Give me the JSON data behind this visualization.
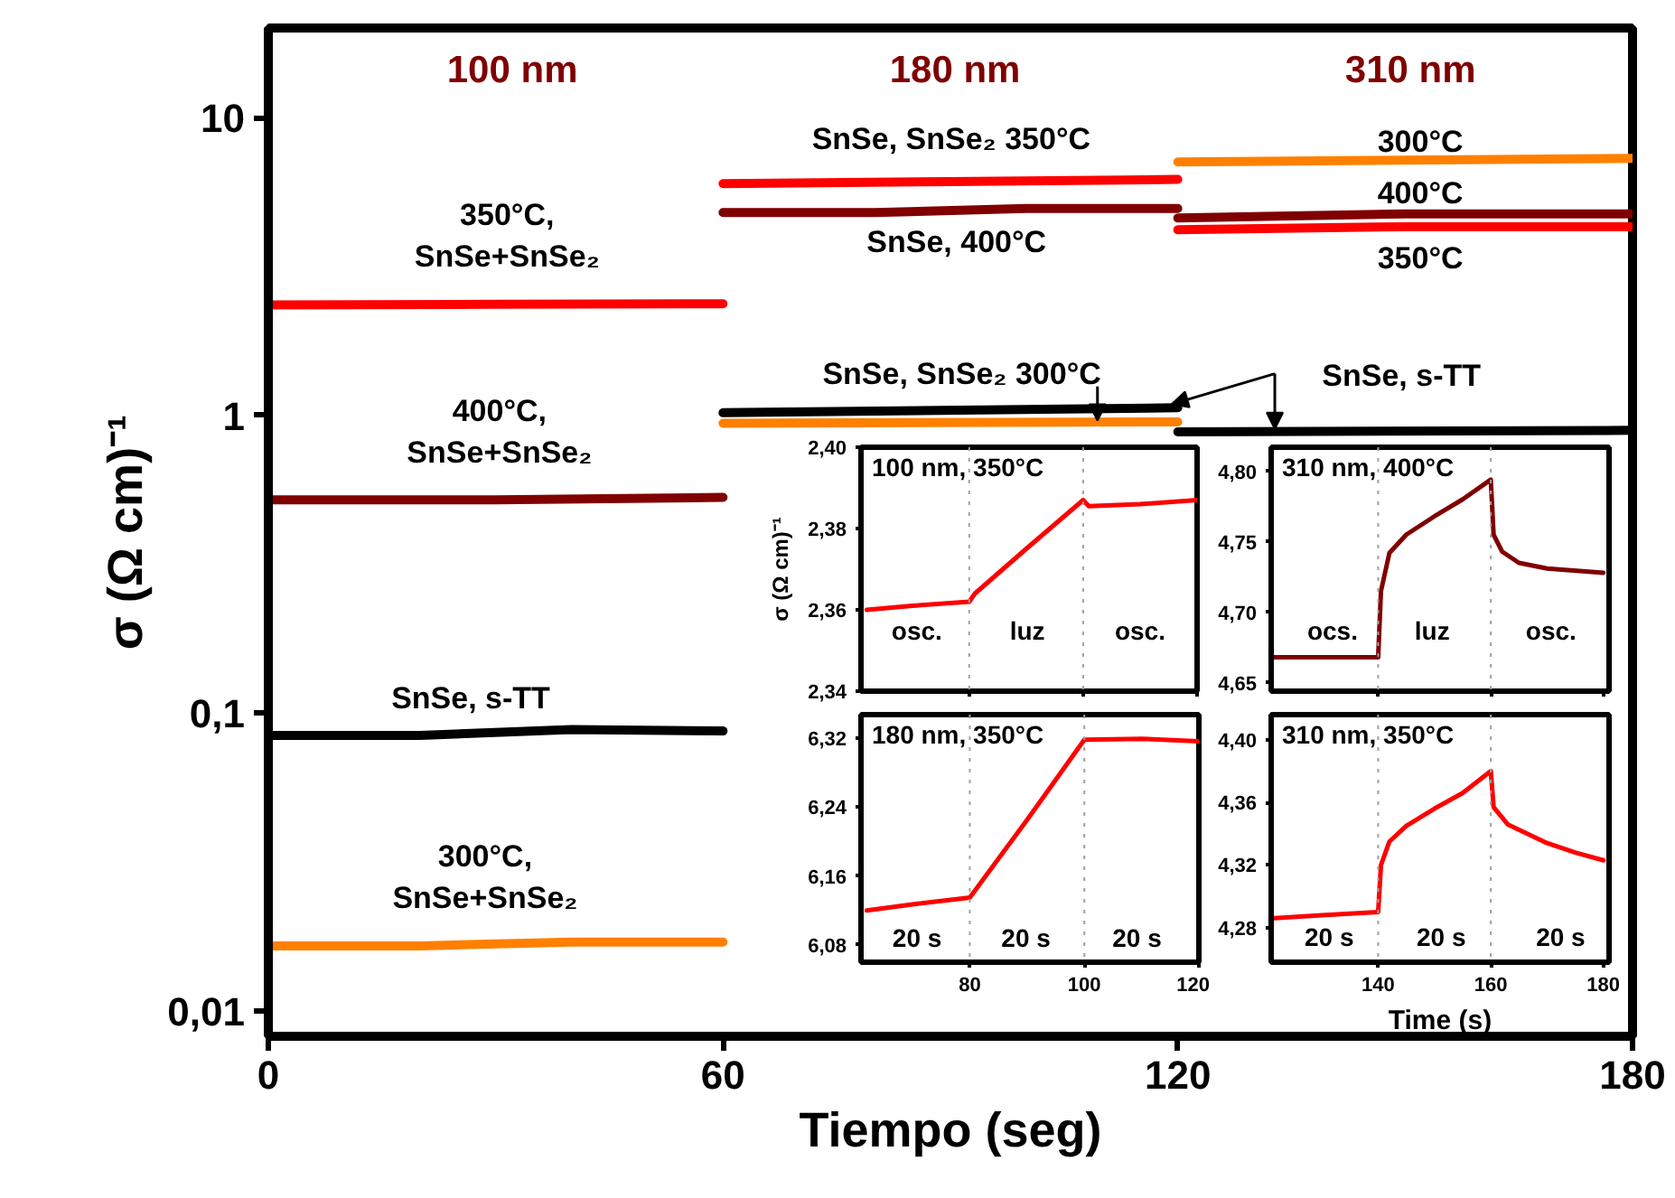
{
  "chart_data": [
    {
      "type": "line",
      "xlabel": "Tiempo (seg)",
      "ylabel": "σ (Ω cm)⁻¹",
      "log": true,
      "grid": false,
      "xlim": [
        0,
        180
      ],
      "xticks": [
        0,
        60,
        120,
        180
      ],
      "ylim": [
        0.0082,
        20
      ],
      "yticks": [
        {
          "value": 0.01,
          "label": "0,01"
        },
        {
          "value": 0.1,
          "label": "0,1"
        },
        1,
        10
      ],
      "series": [
        {
          "color": "#ff0000",
          "x": [
            0,
            30,
            60
          ],
          "values": [
            2.35,
            2.36,
            2.37
          ]
        },
        {
          "color": "#800000",
          "x": [
            0,
            30,
            60
          ],
          "values": [
            0.52,
            0.52,
            0.53
          ]
        },
        {
          "color": "#000000",
          "x": [
            0,
            20,
            40,
            60
          ],
          "values": [
            0.084,
            0.084,
            0.088,
            0.087
          ]
        },
        {
          "color": "#ff8000",
          "x": [
            0,
            20,
            40,
            60
          ],
          "values": [
            0.0165,
            0.0165,
            0.017,
            0.017
          ]
        },
        {
          "color": "#ff0000",
          "x": [
            60,
            90,
            120
          ],
          "values": [
            6.0,
            6.1,
            6.2
          ]
        },
        {
          "color": "#800000",
          "x": [
            60,
            80,
            100,
            120
          ],
          "values": [
            4.8,
            4.8,
            4.95,
            4.95
          ]
        },
        {
          "color": "#000000",
          "x": [
            60,
            120
          ],
          "values": [
            1.02,
            1.06
          ]
        },
        {
          "color": "#ff8000",
          "x": [
            60,
            120
          ],
          "values": [
            0.94,
            0.95
          ]
        },
        {
          "color": "#ff8000",
          "x": [
            120,
            180
          ],
          "values": [
            7.1,
            7.3
          ]
        },
        {
          "color": "#800000",
          "x": [
            120,
            150,
            180
          ],
          "values": [
            4.6,
            4.75,
            4.75
          ]
        },
        {
          "color": "#ff0000",
          "x": [
            120,
            150,
            180
          ],
          "values": [
            4.2,
            4.3,
            4.3
          ]
        },
        {
          "color": "#000000",
          "x": [
            120,
            180
          ],
          "values": [
            0.88,
            0.89
          ]
        }
      ],
      "annotations": [
        "100 nm",
        "180 nm",
        "310 nm",
        "350°C,\nSnSe+SnSe₂",
        "400°C,\nSnSe+SnSe₂",
        "SnSe, s-TT",
        "300°C,\nSnSe+SnSe₂",
        "SnSe, SnSe₂ 350°C",
        "SnSe, 400°C",
        "300°C",
        "400°C",
        "350°C",
        "SnSe, SnSe₂ 300°C",
        "SnSe, s-TT"
      ]
    },
    {
      "type": "line",
      "title": "100 nm, 350°C",
      "ylabel": "σ (Ω cm)⁻¹",
      "tick_labels": "y",
      "grid": false,
      "xlim": [
        61,
        120
      ],
      "xticks": [
        80,
        100,
        120
      ],
      "ylim": [
        2.34,
        2.4
      ],
      "yticks": [
        {
          "value": 2.34,
          "label": "2,34"
        },
        {
          "value": 2.36,
          "label": "2,36"
        },
        {
          "value": 2.38,
          "label": "2,38"
        },
        {
          "value": 2.4,
          "label": "2,40"
        }
      ],
      "series": [
        {
          "color": "#ff0000",
          "x": [
            62,
            70,
            80,
            81,
            90,
            100,
            101,
            110,
            120
          ],
          "values": [
            2.36,
            2.361,
            2.362,
            2.364,
            2.375,
            2.387,
            2.3855,
            2.386,
            2.387
          ]
        }
      ],
      "ref_lines": [
        {
          "axis": "x",
          "value": 80,
          "line_style": "dotted",
          "color": "#a0a0a0"
        },
        {
          "axis": "x",
          "value": 100,
          "line_style": "dotted",
          "color": "#a0a0a0"
        }
      ],
      "annotations": [
        "osc.",
        "luz",
        "osc."
      ]
    },
    {
      "type": "line",
      "title": "310 nm, 400°C",
      "tick_labels": "y",
      "grid": false,
      "xlim": [
        121,
        181
      ],
      "xticks": [
        140,
        160,
        180
      ],
      "ylim": [
        4.644,
        4.817
      ],
      "yticks": [
        {
          "value": 4.65,
          "label": "4,65"
        },
        {
          "value": 4.7,
          "label": "4,70"
        },
        {
          "value": 4.75,
          "label": "4,75"
        },
        {
          "value": 4.8,
          "label": "4,80"
        }
      ],
      "series": [
        {
          "color": "#800000",
          "x": [
            121,
            130,
            140,
            140.5,
            142,
            145,
            150,
            155,
            160,
            160.5,
            162,
            165,
            170,
            180
          ],
          "values": [
            4.668,
            4.668,
            4.668,
            4.715,
            4.742,
            4.755,
            4.768,
            4.78,
            4.794,
            4.755,
            4.743,
            4.735,
            4.731,
            4.728
          ]
        }
      ],
      "ref_lines": [
        {
          "axis": "x",
          "value": 140,
          "line_style": "dotted",
          "color": "#a0a0a0"
        },
        {
          "axis": "x",
          "value": 160,
          "line_style": "dotted",
          "color": "#a0a0a0"
        }
      ],
      "annotations": [
        "ocs.",
        "luz",
        "osc."
      ]
    },
    {
      "type": "line",
      "title": "180 nm, 350°C",
      "grid": false,
      "xlim": [
        61,
        120
      ],
      "xticks": [
        80,
        100,
        120
      ],
      "ylim": [
        6.06,
        6.347
      ],
      "yticks": [
        {
          "value": 6.08,
          "label": "6,08"
        },
        {
          "value": 6.16,
          "label": "6,16"
        },
        {
          "value": 6.24,
          "label": "6,24"
        },
        {
          "value": 6.32,
          "label": "6,32"
        }
      ],
      "series": [
        {
          "color": "#ff0000",
          "x": [
            62,
            70,
            80,
            90,
            100,
            110,
            120
          ],
          "values": [
            6.12,
            6.127,
            6.135,
            6.225,
            6.318,
            6.319,
            6.316
          ]
        }
      ],
      "ref_lines": [
        {
          "axis": "x",
          "value": 80,
          "line_style": "dotted",
          "color": "#a0a0a0"
        },
        {
          "axis": "x",
          "value": 100,
          "line_style": "dotted",
          "color": "#a0a0a0"
        }
      ],
      "annotations": [
        "20 s",
        "20 s",
        "20 s"
      ]
    },
    {
      "type": "line",
      "title": "310 nm, 350°C",
      "xlabel": "Time (s)",
      "grid": false,
      "xlim": [
        121,
        181
      ],
      "xticks": [
        140,
        160,
        180
      ],
      "ylim": [
        4.258,
        4.416
      ],
      "yticks": [
        {
          "value": 4.28,
          "label": "4,28"
        },
        {
          "value": 4.32,
          "label": "4,32"
        },
        {
          "value": 4.36,
          "label": "4,36"
        },
        {
          "value": 4.4,
          "label": "4,40"
        }
      ],
      "series": [
        {
          "color": "#ff0000",
          "x": [
            121,
            130,
            140,
            140.5,
            142,
            145,
            150,
            155,
            160,
            160.5,
            163,
            170,
            175,
            180
          ],
          "values": [
            4.286,
            4.288,
            4.29,
            4.32,
            4.335,
            4.345,
            4.356,
            4.366,
            4.38,
            4.357,
            4.346,
            4.334,
            4.328,
            4.323
          ]
        }
      ],
      "ref_lines": [
        {
          "axis": "x",
          "value": 140,
          "line_style": "dotted",
          "color": "#a0a0a0"
        },
        {
          "axis": "x",
          "value": 160,
          "line_style": "dotted",
          "color": "#a0a0a0"
        }
      ],
      "annotations": [
        "20 s",
        "20 s",
        "20 s"
      ]
    }
  ]
}
